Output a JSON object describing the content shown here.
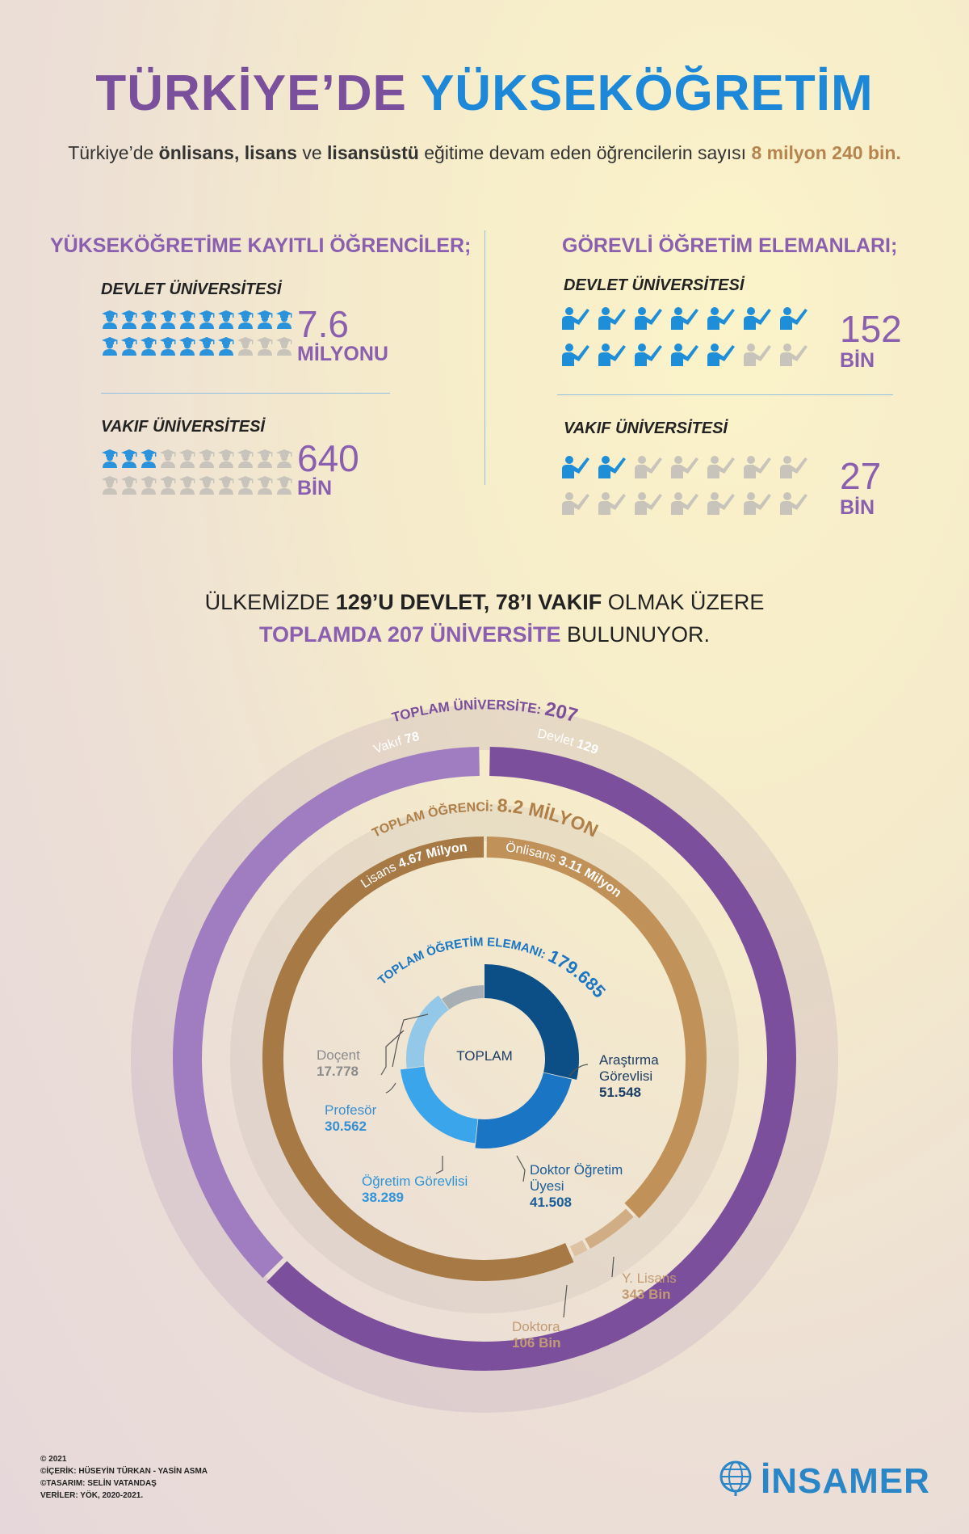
{
  "header": {
    "title_part1": "TÜRKİYE’DE",
    "title_part2": "YÜKSEKÖĞRETİM",
    "subtitle": {
      "p1": "Türkiye’de ",
      "b1": "önlisans, lisans",
      "p2": " ve ",
      "b2": "lisansüstü",
      "p3": " eğitime devam eden öğrencilerin sayısı ",
      "hl": "8 milyon 240 bin."
    }
  },
  "students": {
    "heading": "YÜKSEKÖĞRETİME KAYITLI ÖĞRENCİLER;",
    "devlet": {
      "label": "DEVLET ÜNİVERSİTESİ",
      "value": "7.6",
      "unit": "MİLYONU",
      "filled_icons": 17,
      "total_icons": 20
    },
    "vakif": {
      "label": "VAKIF ÜNİVERSİTESİ",
      "value": "640",
      "unit": "BİN",
      "filled_icons": 3,
      "total_icons": 20
    }
  },
  "staff": {
    "heading": "GÖREVLİ ÖĞRETİM ELEMANLARI;",
    "devlet": {
      "label": "DEVLET ÜNİVERSİTESİ",
      "value": "152",
      "unit": "BİN",
      "filled_icons": 12,
      "total_icons": 14
    },
    "vakif": {
      "label": "VAKIF ÜNİVERSİTESİ",
      "value": "27",
      "unit": "BİN",
      "filled_icons": 2,
      "total_icons": 14
    }
  },
  "universities": {
    "line1_a": "ÜLKEMİZDE ",
    "line1_b": "129’U DEVLET, 78’I VAKIF",
    "line1_c": " OLMAK ÜZERE",
    "line2_a": "TOPLAMDA 207 ÜNİVERSİTE",
    "line2_b": " BULUNUYOR."
  },
  "chart_data": {
    "type": "pie",
    "rings": [
      {
        "title": "TOPLAM ÜNİVERSİTE:",
        "total": "207",
        "segments": [
          {
            "label": "Devlet",
            "value": 129,
            "display": "129"
          },
          {
            "label": "Vakıf",
            "value": 78,
            "display": "78"
          }
        ]
      },
      {
        "title": "TOPLAM ÖĞRENCİ:",
        "total": "8.2 MİLYON",
        "segments": [
          {
            "label": "Önlisans",
            "value": 3.11,
            "display": "3.11 Milyon"
          },
          {
            "label": "Lisans",
            "value": 4.67,
            "display": "4.67 Milyon"
          },
          {
            "label": "Y. Lisans",
            "value": 0.343,
            "display": "343 Bin"
          },
          {
            "label": "Doktora",
            "value": 0.106,
            "display": "106 Bin"
          }
        ]
      },
      {
        "title": "TOPLAM ÖĞRETİM ELEMANI:",
        "total": "179.685",
        "center_label": "TOPLAM",
        "segments": [
          {
            "label": "Araştırma Görevlisi",
            "value": 51548,
            "display": "51.548"
          },
          {
            "label": "Doktor Öğretim Üyesi",
            "value": 41508,
            "display": "41.508"
          },
          {
            "label": "Öğretim Görevlisi",
            "value": 38289,
            "display": "38.289"
          },
          {
            "label": "Profesör",
            "value": 30562,
            "display": "30.562"
          },
          {
            "label": "Doçent",
            "value": 17778,
            "display": "17.778"
          }
        ]
      }
    ]
  },
  "ring_labels": {
    "arastirma_1": "Araştırma",
    "arastirma_2": "Görevlisi",
    "arastirma_v": "51.548",
    "doktor_1": "Doktor Öğretim",
    "doktor_2": "Üyesi",
    "doktor_v": "41.508",
    "ogretim": "Öğretim Görevlisi",
    "ogretim_v": "38.289",
    "profesor": "Profesör",
    "profesor_v": "30.562",
    "docent": "Doçent",
    "docent_v": "17.778",
    "ylisans": "Y. Lisans",
    "ylisans_v": "343 Bin",
    "doktora": "Doktora",
    "doktora_v": "106 Bin"
  },
  "colors": {
    "purple": "#7b4f9c",
    "purple_light": "#a07cc0",
    "gold": "#c0925a",
    "gold_dark": "#a77a45",
    "blue_dark": "#0c4f86",
    "blue_mid": "#1a76c4",
    "blue_light": "#3aa5ea",
    "blue_pale": "#93c8e8",
    "gray": "#a7aeb4"
  },
  "footer": {
    "l1": "© 2021",
    "l2": "©İÇERİK: HÜSEYİN TÜRKAN - YASİN ASMA",
    "l3": "©TASARIM: SELİN VATANDAŞ",
    "l4": "VERİLER: YÖK, 2020-2021.",
    "logo": "İNSAMER",
    "logo_icon": "globe-icon"
  }
}
